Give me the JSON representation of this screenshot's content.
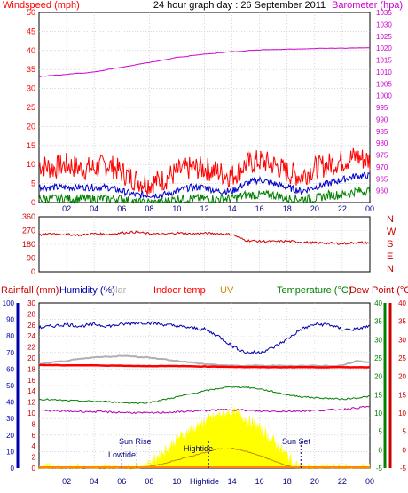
{
  "header": {
    "title": "24 hour graph day : 26 September 2011",
    "left_label": "Windspeed (mph)",
    "right_label": "Barometer (hpa)"
  },
  "colors": {
    "wind": "#ff0000",
    "wind_avg": "#0000cc",
    "wind_low": "#008000",
    "barometer": "#cc00cc",
    "direction": "#cc0000",
    "rain": "#cc0000",
    "humidity": "#0000aa",
    "solar": "#b0b0b0",
    "indoor": "#ff0000",
    "uv": "#cc8800",
    "temperature": "#008000",
    "dewpoint": "#cc0000",
    "dewpoint_line": "#b000b0",
    "solar_fill": "#ffff00",
    "solar_line": "#cc8800",
    "grid": "#c0c0c0"
  },
  "time_labels": [
    "02",
    "04",
    "06",
    "08",
    "10",
    "12",
    "14",
    "16",
    "18",
    "20",
    "22",
    "00"
  ],
  "panel3_time_labels": [
    "02",
    "04",
    "06",
    "08",
    "10",
    "Hightide",
    "14",
    "16",
    "18",
    "20",
    "22",
    "00"
  ],
  "direction_letters": [
    "N",
    "W",
    "S",
    "E",
    "N"
  ],
  "panel3_headers": {
    "rainfall": "Rainfall (mm)",
    "humidity": "Humidity (%)",
    "solar": "olar",
    "indoor": "Indoor temp",
    "uv": "UV",
    "temperature": "Temperature (°C)",
    "dewpoint": "Dew Point (°C)"
  },
  "annotations": {
    "sunrise": "Sun Rise",
    "sunset": "Sun Set",
    "lowtide": "Lowtide",
    "hightide": "Hightide"
  },
  "chart_data": [
    {
      "type": "line",
      "title": "24 hour graph day : 26 September 2011",
      "ylabel": "Windspeed (mph)",
      "y2label": "Barometer (hpa)",
      "ylim": [
        0,
        50
      ],
      "y2lim": [
        955,
        1035
      ],
      "yticks": [
        0,
        5,
        10,
        15,
        20,
        25,
        30,
        35,
        40,
        45,
        50
      ],
      "y2ticks": [
        960,
        965,
        970,
        975,
        980,
        985,
        990,
        995,
        1000,
        1005,
        1010,
        1015,
        1020,
        1025,
        1030,
        1035
      ],
      "xlim": [
        0,
        24
      ],
      "series": [
        {
          "name": "Windspeed (mph)",
          "axis": "left",
          "x": [
            0,
            1,
            2,
            3,
            4,
            5,
            6,
            7,
            8,
            9,
            10,
            11,
            12,
            13,
            14,
            15,
            16,
            17,
            18,
            19,
            20,
            21,
            22,
            23,
            24
          ],
          "values": [
            10,
            9,
            10,
            9,
            9,
            10,
            8,
            6,
            5,
            6,
            8,
            9,
            9,
            8,
            7,
            10,
            11,
            10,
            8,
            7,
            9,
            10,
            11,
            12,
            11
          ]
        },
        {
          "axis": "left",
          "x": [
            0,
            1,
            2,
            3,
            4,
            5,
            6,
            7,
            8,
            9,
            10,
            11,
            12,
            13,
            14,
            15,
            16,
            17,
            18,
            19,
            20,
            21,
            22,
            23,
            24
          ],
          "values": [
            4,
            4,
            4,
            4,
            4,
            4,
            3,
            2,
            2,
            2,
            3,
            4,
            4,
            3,
            3,
            5,
            6,
            5,
            4,
            3,
            4,
            5,
            6,
            7,
            7
          ]
        },
        {
          "axis": "left",
          "x": [
            0,
            1,
            2,
            3,
            4,
            5,
            6,
            7,
            8,
            9,
            10,
            11,
            12,
            13,
            14,
            15,
            16,
            17,
            18,
            19,
            20,
            21,
            22,
            23,
            24
          ],
          "values": [
            1,
            1,
            1,
            1,
            1,
            1,
            1,
            0,
            0,
            0,
            1,
            1,
            1,
            1,
            1,
            2,
            2,
            2,
            1,
            1,
            1,
            2,
            2,
            3,
            3
          ]
        },
        {
          "name": "Barometer (hpa)",
          "axis": "right",
          "x": [
            0,
            2,
            4,
            6,
            8,
            10,
            12,
            14,
            16,
            18,
            20,
            22,
            24
          ],
          "values": [
            1008,
            1009,
            1010,
            1012,
            1014,
            1016,
            1017.5,
            1018.5,
            1019.2,
            1019.6,
            1019.8,
            1020,
            1020.2
          ]
        }
      ]
    },
    {
      "type": "line",
      "ylabel": "Wind direction",
      "ylim": [
        0,
        360
      ],
      "yticks": [
        0,
        90,
        180,
        270,
        360
      ],
      "xlim": [
        0,
        24
      ],
      "series": [
        {
          "x": [
            0,
            1,
            2,
            3,
            4,
            5,
            6,
            7,
            8,
            9,
            10,
            11,
            12,
            13,
            14,
            15,
            16,
            17,
            18,
            19,
            20,
            21,
            22,
            23,
            24
          ],
          "values": [
            240,
            250,
            245,
            240,
            250,
            245,
            255,
            260,
            250,
            245,
            255,
            248,
            252,
            250,
            245,
            205,
            200,
            198,
            200,
            195,
            190,
            188,
            185,
            192,
            190
          ]
        }
      ]
    },
    {
      "type": "line",
      "ylabel": "Rainfall (mm)",
      "y2label": "Temperature (°C)",
      "ylim": [
        0,
        100
      ],
      "yticks": [
        0,
        10,
        20,
        30,
        40,
        50,
        60,
        70,
        80,
        90,
        100
      ],
      "y_mid_ticks": [
        0,
        2,
        4,
        6,
        8,
        10,
        12,
        14,
        16,
        18,
        20,
        22,
        24,
        26,
        28,
        30
      ],
      "y2lim": [
        -5,
        40
      ],
      "y2ticks": [
        -5,
        0,
        5,
        10,
        15,
        20,
        25,
        30,
        35,
        40
      ],
      "xlim": [
        0,
        24
      ],
      "series": [
        {
          "name": "Humidity (%)",
          "axis": "left",
          "x": [
            0,
            1,
            2,
            3,
            4,
            5,
            6,
            7,
            8,
            9,
            10,
            11,
            12,
            13,
            14,
            15,
            16,
            17,
            18,
            19,
            20,
            21,
            22,
            23,
            24
          ],
          "values": [
            85,
            86,
            87,
            86,
            87,
            86,
            87,
            88,
            88,
            87,
            86,
            85,
            84,
            80,
            74,
            70,
            70,
            73,
            78,
            84,
            87,
            87,
            84,
            84,
            86
          ]
        },
        {
          "name": "olar",
          "axis": "left",
          "x": [
            0,
            2,
            4,
            6,
            8,
            10,
            12,
            14,
            16,
            18,
            20,
            22,
            23,
            24
          ],
          "values": [
            63,
            65,
            67,
            68,
            67,
            65,
            63,
            62,
            62,
            62,
            62,
            62,
            65,
            64
          ]
        },
        {
          "name": "Indoor temp",
          "axis": "right",
          "x": [
            0,
            2,
            4,
            6,
            8,
            10,
            12,
            14,
            16,
            18,
            20,
            22,
            24
          ],
          "values": [
            23.1,
            23.0,
            23.0,
            22.9,
            22.8,
            22.8,
            22.7,
            22.6,
            22.5,
            22.5,
            22.5,
            22.5,
            22.5
          ]
        },
        {
          "name": "Temperature (°C)",
          "axis": "right",
          "x": [
            0,
            1,
            2,
            3,
            4,
            5,
            6,
            7,
            8,
            9,
            10,
            11,
            12,
            13,
            14,
            15,
            16,
            17,
            18,
            19,
            20,
            21,
            22,
            23,
            24
          ],
          "values": [
            13.8,
            13.6,
            13.4,
            13.3,
            13.2,
            13.1,
            12.9,
            12.7,
            12.9,
            13.6,
            14.4,
            15.2,
            16.0,
            16.7,
            17.2,
            17.0,
            16.6,
            15.8,
            15.0,
            14.5,
            14.2,
            14.0,
            13.8,
            14.1,
            14.6
          ]
        },
        {
          "name": "Dew Point (°C)",
          "axis": "right",
          "x": [
            0,
            2,
            4,
            6,
            8,
            10,
            12,
            14,
            16,
            18,
            20,
            22,
            24
          ],
          "values": [
            10.8,
            10.5,
            10.4,
            10.2,
            10.0,
            10.3,
            10.7,
            11.0,
            10.5,
            10.5,
            10.7,
            11.0,
            11.8
          ]
        },
        {
          "name": "UV",
          "axis": "right",
          "x": [
            0,
            7,
            8,
            9,
            10,
            11,
            12,
            13,
            14,
            15,
            16,
            17,
            18,
            19,
            24
          ],
          "values": [
            -5,
            -5,
            -4.6,
            -3.8,
            -2.8,
            -1.8,
            -0.8,
            0.2,
            0.4,
            -0.4,
            -1.6,
            -3.0,
            -4.4,
            -5,
            -5
          ]
        },
        {
          "name": "Solar",
          "axis": "right",
          "x": [
            0,
            7,
            8,
            9,
            10,
            11,
            12,
            13,
            14,
            15,
            16,
            17,
            18,
            19,
            24
          ],
          "values": [
            -5,
            -5,
            -3.5,
            -0.5,
            3.0,
            5.5,
            7.8,
            9.6,
            10.6,
            8.6,
            6.0,
            2.5,
            -1.5,
            -5,
            -5
          ]
        }
      ]
    }
  ]
}
